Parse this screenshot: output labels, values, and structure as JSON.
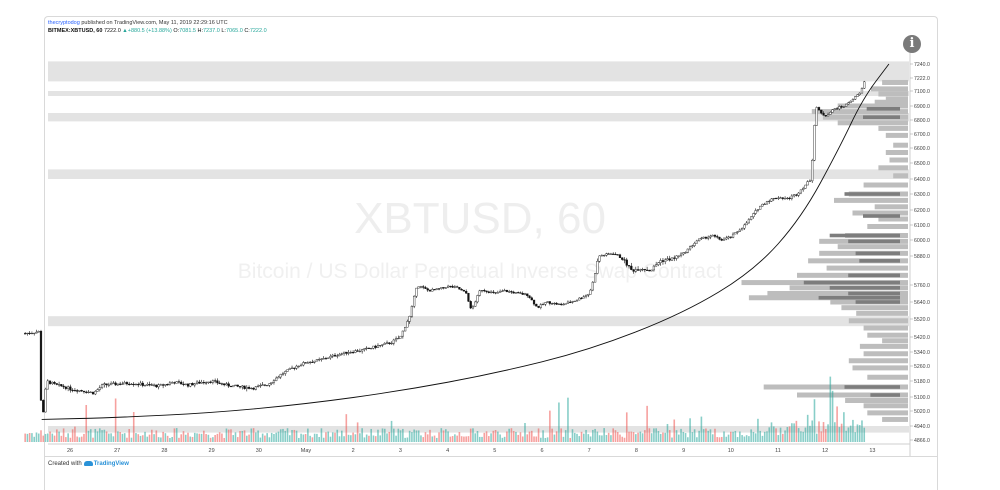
{
  "header": {
    "author": "thecryptodog",
    "published": "published on TradingView.com, May 11, 2019 22:29:16 UTC",
    "symbol_line": "BITMEX:XBTUSD, 60",
    "last": "7222.0",
    "change": "+880.5 (+13.88%)",
    "o_label": "O:",
    "o": "7081.5",
    "h_label": "H:",
    "h": "7237.0",
    "l_label": "L:",
    "l": "7065.0",
    "c_label": "C:",
    "c": "7222.0"
  },
  "info_icon": "info-icon",
  "footer": {
    "prefix": "Created with",
    "brand": "TradingView"
  },
  "colors": {
    "up": "#26a69a",
    "down": "#ef5350",
    "candle": "#111111",
    "band": "#d9d9d9",
    "profile": "#bdbdbd",
    "profile_dark": "#7d7d7d"
  },
  "chart_data": {
    "type": "candlestick",
    "watermark_title": "XBTUSD, 60",
    "watermark_subtitle": "Bitcoin / US Dollar Perpetual Inverse Swap Contract",
    "x_ticks": [
      "26",
      "27",
      "28",
      "29",
      "30",
      "May",
      "2",
      "3",
      "4",
      "5",
      "6",
      "7",
      "8",
      "9",
      "10",
      "11",
      "12",
      "13"
    ],
    "y_ticks": [
      7240.0,
      7222.0,
      7100.0,
      6900.0,
      6800.0,
      6700.0,
      6600.0,
      6500.0,
      6400.0,
      6300.0,
      6200.0,
      6100.0,
      6000.0,
      5880.0,
      5760.0,
      5640.0,
      5520.0,
      5420.0,
      5340.0,
      5260.0,
      5180.0,
      5100.0,
      5020.0,
      4940.0,
      4866.0
    ],
    "last_price": 7222.0,
    "price_path": [
      [
        25.05,
        5440
      ],
      [
        25.35,
        5450
      ],
      [
        25.4,
        4935
      ],
      [
        25.5,
        5180
      ],
      [
        25.7,
        5160
      ],
      [
        25.9,
        5150
      ],
      [
        26.0,
        5140
      ],
      [
        26.3,
        5130
      ],
      [
        26.5,
        5120
      ],
      [
        26.7,
        5160
      ],
      [
        27.0,
        5165
      ],
      [
        27.3,
        5170
      ],
      [
        27.6,
        5160
      ],
      [
        27.9,
        5155
      ],
      [
        28.2,
        5175
      ],
      [
        28.5,
        5160
      ],
      [
        28.8,
        5175
      ],
      [
        29.0,
        5180
      ],
      [
        29.3,
        5160
      ],
      [
        29.6,
        5150
      ],
      [
        29.9,
        5145
      ],
      [
        30.2,
        5165
      ],
      [
        30.5,
        5220
      ],
      [
        30.8,
        5260
      ],
      [
        31.0,
        5280
      ],
      [
        31.3,
        5295
      ],
      [
        31.6,
        5320
      ],
      [
        31.9,
        5340
      ],
      [
        32.2,
        5350
      ],
      [
        32.5,
        5370
      ],
      [
        32.8,
        5390
      ],
      [
        33.0,
        5420
      ],
      [
        33.2,
        5540
      ],
      [
        33.35,
        5760
      ],
      [
        33.6,
        5720
      ],
      [
        33.8,
        5730
      ],
      [
        34.0,
        5750
      ],
      [
        34.2,
        5740
      ],
      [
        34.4,
        5700
      ],
      [
        34.5,
        5580
      ],
      [
        34.7,
        5730
      ],
      [
        35.0,
        5700
      ],
      [
        35.2,
        5720
      ],
      [
        35.5,
        5700
      ],
      [
        35.7,
        5690
      ],
      [
        35.9,
        5600
      ],
      [
        36.1,
        5640
      ],
      [
        36.4,
        5620
      ],
      [
        36.7,
        5650
      ],
      [
        37.0,
        5700
      ],
      [
        37.2,
        5880
      ],
      [
        37.5,
        5900
      ],
      [
        37.7,
        5870
      ],
      [
        37.9,
        5820
      ],
      [
        38.1,
        5830
      ],
      [
        38.3,
        5820
      ],
      [
        38.5,
        5860
      ],
      [
        38.8,
        5870
      ],
      [
        39.0,
        5900
      ],
      [
        39.3,
        6000
      ],
      [
        39.6,
        6030
      ],
      [
        39.8,
        6000
      ],
      [
        40.0,
        6020
      ],
      [
        40.3,
        6100
      ],
      [
        40.6,
        6220
      ],
      [
        40.8,
        6260
      ],
      [
        41.0,
        6280
      ],
      [
        41.2,
        6270
      ],
      [
        41.4,
        6300
      ],
      [
        41.7,
        6400
      ],
      [
        41.8,
        6900
      ],
      [
        41.9,
        6850
      ],
      [
        42.0,
        6830
      ],
      [
        42.2,
        6880
      ],
      [
        42.4,
        6900
      ],
      [
        42.6,
        7000
      ],
      [
        42.75,
        7081.5
      ],
      [
        42.85,
        7222
      ]
    ],
    "curve": [
      [
        25.4,
        4975
      ],
      [
        27,
        4985
      ],
      [
        29,
        5010
      ],
      [
        31,
        5060
      ],
      [
        33,
        5130
      ],
      [
        35,
        5220
      ],
      [
        37,
        5350
      ],
      [
        39,
        5560
      ],
      [
        40.5,
        5820
      ],
      [
        41.5,
        6150
      ],
      [
        42.3,
        6600
      ],
      [
        42.8,
        7000
      ],
      [
        43.35,
        7240
      ]
    ],
    "horizontal_bands": [
      [
        7190,
        7260
      ],
      [
        7040,
        7100
      ],
      [
        6790,
        6850
      ],
      [
        6400,
        6460
      ],
      [
        5480,
        5540
      ],
      [
        4905,
        4940
      ]
    ],
    "volume_profile": [
      [
        7180,
        35
      ],
      [
        7120,
        50
      ],
      [
        7060,
        40
      ],
      [
        6990,
        30
      ],
      [
        6950,
        45
      ],
      [
        6900,
        95
      ],
      [
        6860,
        130
      ],
      [
        6820,
        115
      ],
      [
        6780,
        95
      ],
      [
        6740,
        40
      ],
      [
        6690,
        30
      ],
      [
        6620,
        20
      ],
      [
        6570,
        30
      ],
      [
        6520,
        25
      ],
      [
        6470,
        40
      ],
      [
        6420,
        20
      ],
      [
        6360,
        60
      ],
      [
        6300,
        80
      ],
      [
        6260,
        100
      ],
      [
        6220,
        45
      ],
      [
        6180,
        75
      ],
      [
        6140,
        40
      ],
      [
        6090,
        55
      ],
      [
        6030,
        85
      ],
      [
        5990,
        120
      ],
      [
        5950,
        95
      ],
      [
        5900,
        120
      ],
      [
        5860,
        135
      ],
      [
        5830,
        110
      ],
      [
        5800,
        150
      ],
      [
        5770,
        225
      ],
      [
        5740,
        160
      ],
      [
        5700,
        190
      ],
      [
        5670,
        215
      ],
      [
        5640,
        105
      ],
      [
        5600,
        90
      ],
      [
        5560,
        70
      ],
      [
        5510,
        80
      ],
      [
        5470,
        60
      ],
      [
        5430,
        55
      ],
      [
        5400,
        35
      ],
      [
        5370,
        65
      ],
      [
        5330,
        60
      ],
      [
        5290,
        80
      ],
      [
        5250,
        75
      ],
      [
        5200,
        55
      ],
      [
        5150,
        195
      ],
      [
        5110,
        150
      ],
      [
        5080,
        85
      ],
      [
        5050,
        60
      ],
      [
        5010,
        55
      ],
      [
        4975,
        35
      ]
    ],
    "volume_profile_dark": [
      [
        6880,
        45
      ],
      [
        6820,
        50
      ],
      [
        6300,
        75
      ],
      [
        6160,
        50
      ],
      [
        6030,
        95
      ],
      [
        5990,
        70
      ],
      [
        5900,
        60
      ],
      [
        5860,
        55
      ],
      [
        5800,
        70
      ],
      [
        5770,
        130
      ],
      [
        5740,
        95
      ],
      [
        5700,
        70
      ],
      [
        5670,
        110
      ],
      [
        5640,
        60
      ],
      [
        5150,
        75
      ],
      [
        5110,
        40
      ]
    ]
  }
}
